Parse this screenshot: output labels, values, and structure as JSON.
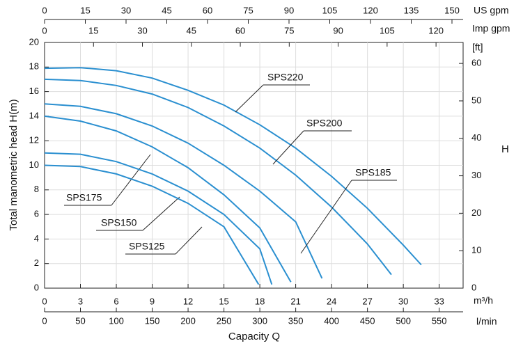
{
  "chart_data": {
    "type": "line",
    "y_label": "Total manometric head H(m)",
    "x_label": "Capacity Q",
    "x_unit": "m³/h",
    "xlim": [
      0,
      35
    ],
    "xticks": [
      0,
      3,
      6,
      9,
      12,
      15,
      18,
      21,
      24,
      27,
      30,
      33
    ],
    "ylim": [
      0,
      20
    ],
    "yticks": [
      0,
      2,
      4,
      6,
      8,
      10,
      12,
      14,
      16,
      18,
      20
    ],
    "y2_label": "H",
    "y2_unit": "[ft]",
    "y2lim": [
      0,
      65.6
    ],
    "y2ticks": [
      0,
      10,
      20,
      30,
      40,
      50,
      60
    ],
    "lmin_axis": {
      "unit": "l/min",
      "lim": [
        0,
        583.3
      ],
      "ticks": [
        0,
        50,
        100,
        150,
        200,
        250,
        300,
        350,
        400,
        450,
        500,
        550
      ]
    },
    "us_axis": {
      "unit": "US gpm",
      "lim": [
        0,
        154.1
      ],
      "ticks": [
        0,
        15,
        30,
        45,
        60,
        75,
        90,
        105,
        120,
        135,
        150
      ]
    },
    "imp_axis": {
      "unit": "Imp gpm",
      "lim": [
        0,
        128.3
      ],
      "ticks": [
        0,
        15,
        30,
        45,
        60,
        75,
        90,
        105,
        120
      ]
    },
    "grid": true,
    "color": "#2a8fd0",
    "series": [
      {
        "name": "SPS220",
        "x": [
          0,
          3,
          6,
          9,
          12,
          15,
          18,
          21,
          24,
          27,
          30,
          31.5
        ],
        "values": [
          17.9,
          17.95,
          17.7,
          17.1,
          16.1,
          14.9,
          13.3,
          11.4,
          9.1,
          6.5,
          3.5,
          1.9
        ]
      },
      {
        "name": "SPS200",
        "x": [
          0,
          3,
          6,
          9,
          12,
          15,
          18,
          21,
          24,
          27,
          29
        ],
        "values": [
          17,
          16.9,
          16.5,
          15.8,
          14.7,
          13.2,
          11.4,
          9.2,
          6.6,
          3.6,
          1.1
        ]
      },
      {
        "name": "SPS185",
        "x": [
          0,
          3,
          6,
          9,
          12,
          15,
          18,
          21,
          23.2
        ],
        "values": [
          15,
          14.8,
          14.2,
          13.2,
          11.8,
          10,
          7.9,
          5.4,
          0.8
        ]
      },
      {
        "name": "SPS175",
        "x": [
          0,
          3,
          6,
          9,
          12,
          15,
          18,
          20.6
        ],
        "values": [
          14,
          13.6,
          12.8,
          11.5,
          9.8,
          7.6,
          4.9,
          0.5
        ]
      },
      {
        "name": "SPS150",
        "x": [
          0,
          3,
          6,
          9,
          12,
          15,
          18,
          19
        ],
        "values": [
          11,
          10.9,
          10.3,
          9.3,
          7.9,
          6,
          3.2,
          0.3
        ]
      },
      {
        "name": "SPS125",
        "x": [
          0,
          3,
          6,
          9,
          12,
          15,
          17.9
        ],
        "values": [
          10,
          9.9,
          9.3,
          8.3,
          6.9,
          5,
          0.3
        ]
      }
    ]
  }
}
